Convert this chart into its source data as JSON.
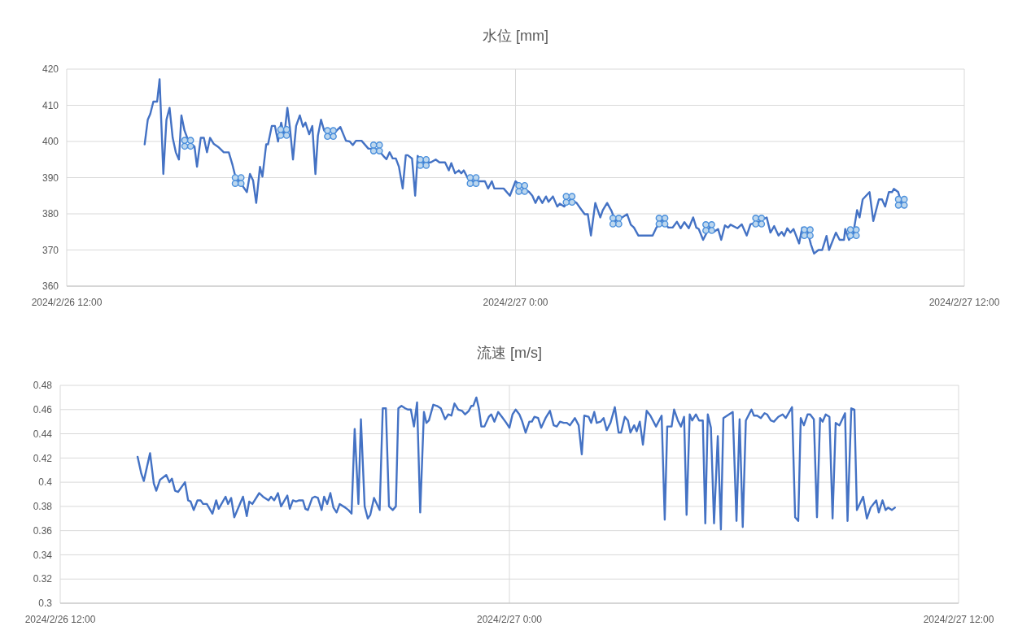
{
  "chart_data": [
    {
      "type": "line",
      "title": "水位 [mm]",
      "xlim": [
        "2024-02-26T12:00",
        "2024-02-27T12:00"
      ],
      "xticks": [
        {
          "value": "2024-02-26T12:00",
          "label": "2024/2/26 12:00"
        },
        {
          "value": "2024-02-27T00:00",
          "label": "2024/2/27 0:00"
        },
        {
          "value": "2024-02-27T12:00",
          "label": "2024/2/27 12:00"
        }
      ],
      "ylim": [
        360,
        420
      ],
      "yticks": [
        360,
        370,
        380,
        390,
        400,
        410,
        420
      ],
      "grid": true,
      "line_style": "solid",
      "series": [
        {
          "color": "#4472c4",
          "x": [
            "2024-02-26T14:05",
            "2024-02-26T14:10",
            "2024-02-26T14:14",
            "2024-02-26T14:19",
            "2024-02-26T14:25",
            "2024-02-26T14:29",
            "2024-02-26T14:35",
            "2024-02-26T14:40",
            "2024-02-26T14:45",
            "2024-02-26T14:50",
            "2024-02-26T14:55",
            "2024-02-26T15:00",
            "2024-02-26T15:04",
            "2024-02-26T15:09",
            "2024-02-26T15:16",
            "2024-02-26T15:25",
            "2024-02-26T15:29",
            "2024-02-26T15:35",
            "2024-02-26T15:40",
            "2024-02-26T15:45",
            "2024-02-26T15:50",
            "2024-02-26T15:56",
            "2024-02-26T16:03",
            "2024-02-26T16:12",
            "2024-02-26T16:20",
            "2024-02-26T16:26",
            "2024-02-26T16:31",
            "2024-02-26T16:41",
            "2024-02-26T16:49",
            "2024-02-26T16:54",
            "2024-02-26T16:59",
            "2024-02-26T17:04",
            "2024-02-26T17:10",
            "2024-02-26T17:14",
            "2024-02-26T17:20",
            "2024-02-26T17:23",
            "2024-02-26T17:29",
            "2024-02-26T17:34",
            "2024-02-26T17:39",
            "2024-02-26T17:44",
            "2024-02-26T17:49",
            "2024-02-26T17:54",
            "2024-02-26T17:58",
            "2024-02-26T18:03",
            "2024-02-26T18:08",
            "2024-02-26T18:14",
            "2024-02-26T18:19",
            "2024-02-26T18:23",
            "2024-02-26T18:29",
            "2024-02-26T18:34",
            "2024-02-26T18:39",
            "2024-02-26T18:43",
            "2024-02-26T18:48",
            "2024-02-26T18:53",
            "2024-02-26T19:06",
            "2024-02-26T19:13",
            "2024-02-26T19:19",
            "2024-02-26T19:28",
            "2024-02-26T19:34",
            "2024-02-26T19:39",
            "2024-02-26T19:44",
            "2024-02-26T19:53",
            "2024-02-26T20:04",
            "2024-02-26T20:12",
            "2024-02-26T20:19",
            "2024-02-26T20:28",
            "2024-02-26T20:33",
            "2024-02-26T20:38",
            "2024-02-26T20:43",
            "2024-02-26T20:48",
            "2024-02-26T20:53",
            "2024-02-26T20:59",
            "2024-02-26T21:04",
            "2024-02-26T21:07",
            "2024-02-26T21:14",
            "2024-02-26T21:19",
            "2024-02-26T21:23",
            "2024-02-26T21:33",
            "2024-02-26T21:44",
            "2024-02-26T21:52",
            "2024-02-26T21:58",
            "2024-02-26T22:07",
            "2024-02-26T22:13",
            "2024-02-26T22:17",
            "2024-02-26T22:23",
            "2024-02-26T22:29",
            "2024-02-26T22:33",
            "2024-02-26T22:37",
            "2024-02-26T22:43",
            "2024-02-26T22:52",
            "2024-02-26T23:01",
            "2024-02-26T23:11",
            "2024-02-26T23:16",
            "2024-02-26T23:22",
            "2024-02-26T23:26",
            "2024-02-26T23:41",
            "2024-02-26T23:51",
            "2024-02-27T00:00",
            "2024-02-27T00:11",
            "2024-02-27T00:22",
            "2024-02-27T00:27",
            "2024-02-27T00:32",
            "2024-02-27T00:37",
            "2024-02-27T00:43",
            "2024-02-27T00:49",
            "2024-02-27T00:53",
            "2024-02-27T01:00",
            "2024-02-27T01:07",
            "2024-02-27T01:11",
            "2024-02-27T01:18",
            "2024-02-27T01:28",
            "2024-02-27T01:38",
            "2024-02-27T01:45",
            "2024-02-27T01:51",
            "2024-02-27T01:56",
            "2024-02-27T02:01",
            "2024-02-27T02:08",
            "2024-02-27T02:16",
            "2024-02-27T02:20",
            "2024-02-27T02:27",
            "2024-02-27T02:34",
            "2024-02-27T02:40",
            "2024-02-27T02:51",
            "2024-02-27T02:59",
            "2024-02-27T03:05",
            "2024-02-27T03:10",
            "2024-02-27T03:17",
            "2024-02-27T03:40",
            "2024-02-27T03:46",
            "2024-02-27T03:56",
            "2024-02-27T04:05",
            "2024-02-27T04:12",
            "2024-02-27T04:19",
            "2024-02-27T04:25",
            "2024-02-27T04:31",
            "2024-02-27T04:38",
            "2024-02-27T04:45",
            "2024-02-27T04:50",
            "2024-02-27T04:54",
            "2024-02-27T05:01",
            "2024-02-27T05:11",
            "2024-02-27T05:18",
            "2024-02-27T05:25",
            "2024-02-27T05:30",
            "2024-02-27T05:36",
            "2024-02-27T05:41",
            "2024-02-27T05:45",
            "2024-02-27T05:56",
            "2024-02-27T06:03",
            "2024-02-27T06:11",
            "2024-02-27T06:17",
            "2024-02-27T06:30",
            "2024-02-27T06:43",
            "2024-02-27T06:49",
            "2024-02-27T06:55",
            "2024-02-27T07:02",
            "2024-02-27T07:07",
            "2024-02-27T07:11",
            "2024-02-27T07:16",
            "2024-02-27T07:21",
            "2024-02-27T07:26",
            "2024-02-27T07:35",
            "2024-02-27T07:40",
            "2024-02-27T07:49",
            "2024-02-27T07:54",
            "2024-02-27T07:59",
            "2024-02-27T08:06",
            "2024-02-27T08:12",
            "2024-02-27T08:19",
            "2024-02-27T08:23",
            "2024-02-27T08:34",
            "2024-02-27T08:40",
            "2024-02-27T08:47",
            "2024-02-27T08:49",
            "2024-02-27T08:55",
            "2024-02-27T09:02",
            "2024-02-27T09:08",
            "2024-02-27T09:12",
            "2024-02-27T09:17",
            "2024-02-27T09:28",
            "2024-02-27T09:34",
            "2024-02-27T09:43",
            "2024-02-27T09:48",
            "2024-02-27T09:53",
            "2024-02-27T09:59",
            "2024-02-27T10:04",
            "2024-02-27T10:07",
            "2024-02-27T10:14",
            "2024-02-27T10:19"
          ],
          "values": [
            399.2,
            406,
            407.6,
            411,
            411,
            417.2,
            391,
            406,
            409.3,
            401,
            397,
            395,
            407.2,
            403,
            399.8,
            398.6,
            393,
            401,
            401,
            397,
            401,
            399.3,
            398.5,
            397,
            397,
            393.5,
            390,
            388,
            386,
            391,
            389.2,
            383,
            393,
            390.3,
            399.2,
            399.2,
            404.3,
            404.3,
            400,
            405.2,
            401.6,
            409.3,
            403.9,
            395,
            404.3,
            407.2,
            404.1,
            405.2,
            402,
            404.3,
            391,
            401.6,
            406,
            403,
            401.3,
            403,
            404,
            400.2,
            400,
            399,
            400.2,
            400.2,
            398,
            398,
            397.8,
            396,
            395.1,
            397,
            395.3,
            395.3,
            393,
            387,
            396.2,
            396.2,
            395.3,
            385,
            396,
            394.2,
            394.2,
            395,
            394.2,
            394.2,
            392,
            394,
            391.2,
            392,
            391.2,
            392,
            390,
            389,
            389,
            389,
            387,
            389,
            387,
            387,
            385,
            389,
            387.3,
            386,
            385,
            383,
            384.8,
            383,
            384.8,
            383.3,
            384.8,
            382,
            382.8,
            382,
            384,
            383,
            381.3,
            379.9,
            379.9,
            374,
            383,
            379,
            381,
            383,
            380.8,
            378,
            379,
            379.9,
            377,
            376.2,
            374,
            374,
            376.2,
            378.4,
            376.2,
            376.2,
            377.8,
            376,
            377.7,
            376,
            379,
            376.2,
            375.8,
            372.8,
            376.2,
            375,
            375.8,
            372.8,
            376.8,
            376.2,
            377,
            376,
            377.1,
            374,
            377.1,
            377.8,
            379,
            374.8,
            376.6,
            374,
            375,
            373.9,
            376,
            374.8,
            375.8,
            371.8,
            376.2,
            374.8,
            371.5,
            369,
            370,
            370,
            373.9,
            370,
            374.8,
            372.8,
            372.8,
            375.8,
            372.8,
            374.7,
            381,
            379,
            384,
            386,
            378,
            384,
            384,
            382,
            386,
            386,
            386.9,
            386,
            383
          ]
        },
        {
          "type": "scatter",
          "color": "#4a8fdc",
          "marker": "cross",
          "x": [
            "2024-02-26T15:14",
            "2024-02-26T16:35",
            "2024-02-26T17:48",
            "2024-02-26T19:03",
            "2024-02-26T20:17",
            "2024-02-26T21:32",
            "2024-02-26T22:52",
            "2024-02-27T00:10",
            "2024-02-27T01:26",
            "2024-02-27T02:41",
            "2024-02-27T03:55",
            "2024-02-27T05:10",
            "2024-02-27T06:30",
            "2024-02-27T07:48",
            "2024-02-27T09:02",
            "2024-02-27T10:19"
          ],
          "values": [
            399.5,
            389.2,
            402.5,
            402.2,
            398.2,
            394.2,
            389.2,
            387,
            384,
            378,
            378,
            376.2,
            378,
            374.8,
            374.8,
            383.2
          ]
        }
      ]
    },
    {
      "type": "line",
      "title": "流速 [m/s]",
      "xlim": [
        "2024-02-26T12:00",
        "2024-02-27T12:00"
      ],
      "xticks": [
        {
          "value": "2024-02-26T12:00",
          "label": "2024/2/26 12:00"
        },
        {
          "value": "2024-02-27T00:00",
          "label": "2024/2/27 0:00"
        },
        {
          "value": "2024-02-27T12:00",
          "label": "2024/2/27 12:00"
        }
      ],
      "ylim": [
        0.3,
        0.48
      ],
      "yticks": [
        0.3,
        0.32,
        0.34,
        0.36,
        0.38,
        0.4,
        0.42,
        0.44,
        0.46,
        0.48
      ],
      "grid": true,
      "line_style": "solid",
      "series": [
        {
          "color": "#4472c4",
          "x": [
            "2024-02-26T14:04",
            "2024-02-26T14:10",
            "2024-02-26T14:14",
            "2024-02-26T14:24",
            "2024-02-26T14:30",
            "2024-02-26T14:34",
            "2024-02-26T14:40",
            "2024-02-26T14:50",
            "2024-02-26T14:55",
            "2024-02-26T14:59",
            "2024-02-26T15:04",
            "2024-02-26T15:09",
            "2024-02-26T15:20",
            "2024-02-26T15:25",
            "2024-02-26T15:29",
            "2024-02-26T15:34",
            "2024-02-26T15:40",
            "2024-02-26T15:45",
            "2024-02-26T15:49",
            "2024-02-26T15:55",
            "2024-02-26T16:04",
            "2024-02-26T16:10",
            "2024-02-26T16:14",
            "2024-02-26T16:25",
            "2024-02-26T16:29",
            "2024-02-26T16:34",
            "2024-02-26T16:39",
            "2024-02-26T16:53",
            "2024-02-26T16:59",
            "2024-02-26T17:03",
            "2024-02-26T17:08",
            "2024-02-26T17:19",
            "2024-02-26T17:25",
            "2024-02-26T17:34",
            "2024-02-26T17:38",
            "2024-02-26T17:43",
            "2024-02-26T17:49",
            "2024-02-26T17:54",
            "2024-02-26T18:04",
            "2024-02-26T18:08",
            "2024-02-26T18:13",
            "2024-02-26T18:18",
            "2024-02-26T18:23",
            "2024-02-26T18:29",
            "2024-02-26T18:33",
            "2024-02-26T18:37",
            "2024-02-26T18:44",
            "2024-02-26T18:48",
            "2024-02-26T18:53",
            "2024-02-26T18:59",
            "2024-02-26T19:03",
            "2024-02-26T19:08",
            "2024-02-26T19:13",
            "2024-02-26T19:18",
            "2024-02-26T19:23",
            "2024-02-26T19:28",
            "2024-02-26T19:37",
            "2024-02-26T19:42",
            "2024-02-26T19:47",
            "2024-02-26T19:52",
            "2024-02-26T19:58",
            "2024-02-26T20:02",
            "2024-02-26T20:08",
            "2024-02-26T20:13",
            "2024-02-26T20:17",
            "2024-02-26T20:23",
            "2024-02-26T20:32",
            "2024-02-26T20:37",
            "2024-02-26T20:42",
            "2024-02-26T20:47",
            "2024-02-26T20:53",
            "2024-02-26T20:58",
            "2024-02-26T21:02",
            "2024-02-26T21:07",
            "2024-02-26T21:13",
            "2024-02-26T21:17",
            "2024-02-26T21:22",
            "2024-02-26T21:27",
            "2024-02-26T21:32",
            "2024-02-26T21:37",
            "2024-02-26T21:43",
            "2024-02-26T21:47",
            "2024-02-26T21:51",
            "2024-02-26T21:58",
            "2024-02-26T22:04",
            "2024-02-26T22:10",
            "2024-02-26T22:17",
            "2024-02-26T22:22",
            "2024-02-26T22:27",
            "2024-02-26T22:32",
            "2024-02-26T22:38",
            "2024-02-26T22:44",
            "2024-02-26T22:49",
            "2024-02-26T22:55",
            "2024-02-26T22:59",
            "2024-02-26T23:02",
            "2024-02-26T23:07",
            "2024-02-26T23:11",
            "2024-02-26T23:15",
            "2024-02-26T23:20",
            "2024-02-26T23:27",
            "2024-02-26T23:31",
            "2024-02-26T23:36",
            "2024-02-26T23:42",
            "2024-02-26T23:48",
            "2024-02-26T23:55",
            "2024-02-27T00:00",
            "2024-02-27T00:05",
            "2024-02-27T00:10",
            "2024-02-27T00:16",
            "2024-02-27T00:20",
            "2024-02-27T00:26",
            "2024-02-27T00:32",
            "2024-02-27T00:36",
            "2024-02-27T00:40",
            "2024-02-27T00:46",
            "2024-02-27T00:51",
            "2024-02-27T00:58",
            "2024-02-27T01:05",
            "2024-02-27T01:11",
            "2024-02-27T01:16",
            "2024-02-27T01:21",
            "2024-02-27T01:27",
            "2024-02-27T01:32",
            "2024-02-27T01:37",
            "2024-02-27T01:45",
            "2024-02-27T01:51",
            "2024-02-27T01:56",
            "2024-02-27T02:00",
            "2024-02-27T02:07",
            "2024-02-27T02:11",
            "2024-02-27T02:16",
            "2024-02-27T02:20",
            "2024-02-27T02:26",
            "2024-02-27T02:31",
            "2024-02-27T02:36",
            "2024-02-27T02:42",
            "2024-02-27T02:49",
            "2024-02-27T02:55",
            "2024-02-27T02:59",
            "2024-02-27T03:05",
            "2024-02-27T03:10",
            "2024-02-27T03:14",
            "2024-02-27T03:20",
            "2024-02-27T03:24",
            "2024-02-27T03:29",
            "2024-02-27T03:34",
            "2024-02-27T03:40",
            "2024-02-27T03:46",
            "2024-02-27T03:55",
            "2024-02-27T04:04",
            "2024-02-27T04:09",
            "2024-02-27T04:13",
            "2024-02-27T04:20",
            "2024-02-27T04:24",
            "2024-02-27T04:30",
            "2024-02-27T04:35",
            "2024-02-27T04:40",
            "2024-02-27T04:44",
            "2024-02-27T04:49",
            "2024-02-27T04:53",
            "2024-02-27T04:59",
            "2024-02-27T05:04",
            "2024-02-27T05:10",
            "2024-02-27T05:14",
            "2024-02-27T05:18",
            "2024-02-27T05:23",
            "2024-02-27T05:28",
            "2024-02-27T05:34",
            "2024-02-27T05:39",
            "2024-02-27T05:43",
            "2024-02-27T05:58",
            "2024-02-27T06:04",
            "2024-02-27T06:09",
            "2024-02-27T06:14",
            "2024-02-27T06:19",
            "2024-02-27T06:28",
            "2024-02-27T06:32",
            "2024-02-27T06:37",
            "2024-02-27T06:43",
            "2024-02-27T06:49",
            "2024-02-27T06:53",
            "2024-02-27T06:59",
            "2024-02-27T07:04",
            "2024-02-27T07:11",
            "2024-02-27T07:18",
            "2024-02-27T07:23",
            "2024-02-27T07:33",
            "2024-02-27T07:38",
            "2024-02-27T07:43",
            "2024-02-27T07:47",
            "2024-02-27T07:52",
            "2024-02-27T07:58",
            "2024-02-27T08:02",
            "2024-02-27T08:08",
            "2024-02-27T08:13",
            "2024-02-27T08:18",
            "2024-02-27T08:22",
            "2024-02-27T08:27",
            "2024-02-27T08:33",
            "2024-02-27T08:38",
            "2024-02-27T08:43",
            "2024-02-27T08:49",
            "2024-02-27T08:58",
            "2024-02-27T09:02",
            "2024-02-27T09:08",
            "2024-02-27T09:13",
            "2024-02-27T09:17",
            "2024-02-27T09:27",
            "2024-02-27T09:33",
            "2024-02-27T09:39",
            "2024-02-27T09:48",
            "2024-02-27T09:52",
            "2024-02-27T09:58",
            "2024-02-27T10:03",
            "2024-02-27T10:07",
            "2024-02-27T10:13",
            "2024-02-27T10:18"
          ],
          "values": [
            0.421,
            0.407,
            0.401,
            0.424,
            0.399,
            0.393,
            0.402,
            0.406,
            0.4,
            0.403,
            0.393,
            0.392,
            0.4,
            0.385,
            0.384,
            0.377,
            0.385,
            0.385,
            0.382,
            0.382,
            0.374,
            0.385,
            0.378,
            0.388,
            0.382,
            0.387,
            0.371,
            0.388,
            0.372,
            0.384,
            0.382,
            0.391,
            0.388,
            0.385,
            0.388,
            0.385,
            0.391,
            0.38,
            0.389,
            0.378,
            0.385,
            0.384,
            0.385,
            0.385,
            0.378,
            0.377,
            0.387,
            0.388,
            0.387,
            0.377,
            0.388,
            0.382,
            0.391,
            0.379,
            0.375,
            0.382,
            0.379,
            0.377,
            0.374,
            0.444,
            0.382,
            0.452,
            0.38,
            0.37,
            0.373,
            0.387,
            0.377,
            0.461,
            0.461,
            0.38,
            0.377,
            0.38,
            0.461,
            0.463,
            0.461,
            0.46,
            0.46,
            0.446,
            0.466,
            0.375,
            0.458,
            0.449,
            0.451,
            0.464,
            0.463,
            0.461,
            0.452,
            0.456,
            0.455,
            0.465,
            0.46,
            0.459,
            0.456,
            0.459,
            0.463,
            0.463,
            0.47,
            0.461,
            0.446,
            0.446,
            0.454,
            0.456,
            0.45,
            0.458,
            0.454,
            0.449,
            0.445,
            0.456,
            0.46,
            0.456,
            0.451,
            0.441,
            0.45,
            0.45,
            0.454,
            0.453,
            0.445,
            0.453,
            0.459,
            0.447,
            0.446,
            0.45,
            0.449,
            0.449,
            0.447,
            0.453,
            0.447,
            0.423,
            0.455,
            0.454,
            0.449,
            0.458,
            0.449,
            0.45,
            0.453,
            0.443,
            0.449,
            0.462,
            0.441,
            0.441,
            0.454,
            0.451,
            0.441,
            0.447,
            0.442,
            0.45,
            0.431,
            0.459,
            0.455,
            0.446,
            0.455,
            0.369,
            0.446,
            0.446,
            0.46,
            0.451,
            0.446,
            0.454,
            0.373,
            0.456,
            0.451,
            0.456,
            0.451,
            0.451,
            0.366,
            0.456,
            0.445,
            0.366,
            0.438,
            0.361,
            0.453,
            0.458,
            0.368,
            0.452,
            0.363,
            0.451,
            0.46,
            0.455,
            0.455,
            0.453,
            0.457,
            0.456,
            0.451,
            0.45,
            0.454,
            0.456,
            0.453,
            0.462,
            0.371,
            0.368,
            0.453,
            0.447,
            0.456,
            0.456,
            0.452,
            0.371,
            0.453,
            0.45,
            0.456,
            0.454,
            0.37,
            0.449,
            0.447,
            0.457,
            0.368,
            0.461,
            0.46,
            0.377,
            0.388,
            0.37,
            0.379,
            0.385,
            0.375,
            0.385,
            0.377,
            0.379,
            0.377,
            0.379
          ]
        }
      ]
    }
  ]
}
